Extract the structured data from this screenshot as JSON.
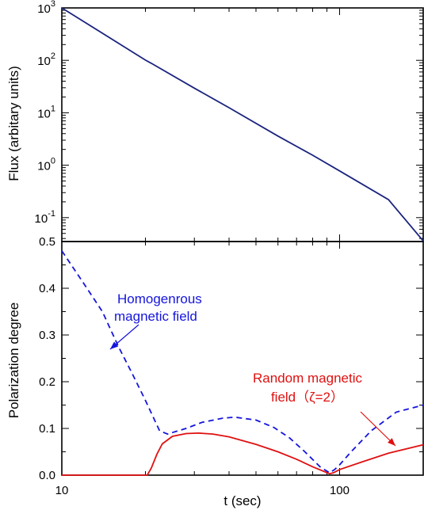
{
  "chart_data": [
    {
      "type": "line",
      "panel": "top",
      "xscale": "log",
      "yscale": "log",
      "xlim": [
        10,
        200
      ],
      "ylim": [
        0.035,
        1000
      ],
      "ylabel": "Flux (arbitary units)",
      "xlabel": "",
      "y_ticks": [
        {
          "value": 0.1,
          "base": "10",
          "exp": "-1"
        },
        {
          "value": 1,
          "base": "10",
          "exp": "0"
        },
        {
          "value": 10,
          "base": "10",
          "exp": "1"
        },
        {
          "value": 100,
          "base": "10",
          "exp": "2"
        },
        {
          "value": 1000,
          "base": "10",
          "exp": "3"
        }
      ],
      "color": "#1a237e",
      "series": [
        {
          "x": [
            10,
            20,
            21,
            30,
            40,
            60,
            80,
            100,
            150,
            200
          ],
          "y": [
            1000,
            101,
            88,
            29.5,
            12.5,
            3.6,
            1.55,
            0.78,
            0.22,
            0.036
          ]
        }
      ]
    },
    {
      "type": "line",
      "panel": "bottom",
      "xscale": "log",
      "xlim": [
        10,
        200
      ],
      "ylim": [
        0,
        0.5
      ],
      "xlabel": "t (sec)",
      "ylabel": "Polarization degree",
      "x_ticks": [
        "10",
        "100"
      ],
      "y_ticks": [
        "0.0",
        "0.1",
        "0.2",
        "0.3",
        "0.4",
        "0.5"
      ],
      "series": [
        {
          "name": "Homogenrous magnetic field",
          "style": "dashed",
          "color": "#1515dd",
          "x": [
            10,
            12,
            14,
            16,
            18,
            20,
            21.5,
            22.5,
            24,
            28,
            32,
            38,
            42,
            50,
            58,
            66,
            75,
            85,
            92,
            96,
            100,
            110,
            130,
            160,
            200
          ],
          "y": [
            0.48,
            0.41,
            0.35,
            0.275,
            0.215,
            0.16,
            0.12,
            0.095,
            0.088,
            0.1,
            0.113,
            0.122,
            0.124,
            0.118,
            0.102,
            0.08,
            0.05,
            0.018,
            0.005,
            0.012,
            0.022,
            0.05,
            0.095,
            0.135,
            0.15
          ]
        },
        {
          "name": "Random magnetic field (ζ=2)",
          "style": "solid",
          "color": "#e01010",
          "x": [
            10,
            15,
            20.3,
            21,
            22,
            23,
            25,
            28,
            31,
            35,
            40,
            50,
            60,
            70,
            80,
            92,
            95,
            100,
            120,
            150,
            200
          ],
          "y": [
            0,
            0,
            0,
            0.015,
            0.045,
            0.067,
            0.083,
            0.089,
            0.09,
            0.088,
            0.082,
            0.066,
            0.05,
            0.034,
            0.018,
            0.003,
            0.005,
            0.012,
            0.028,
            0.047,
            0.065
          ]
        }
      ],
      "annotations": [
        {
          "lines": [
            "Homogenrous",
            "magnetic field"
          ],
          "color": "#1515dd"
        },
        {
          "lines": [
            "Random magnetic",
            "field（ζ=2）"
          ],
          "color": "#e01010"
        }
      ]
    }
  ]
}
